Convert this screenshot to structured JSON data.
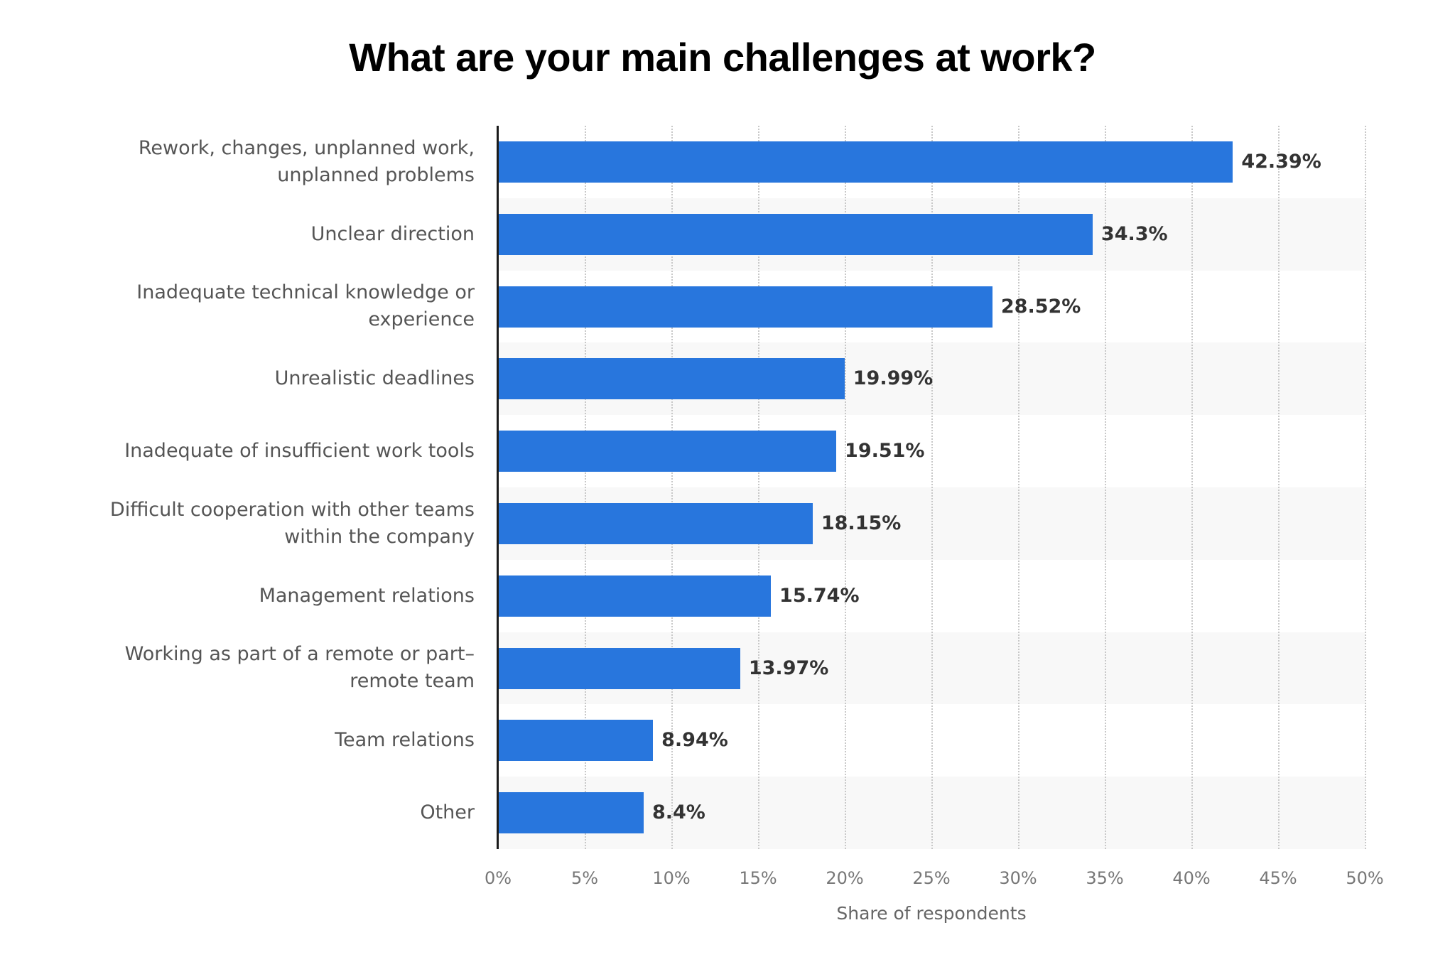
{
  "title": "What are your main challenges at work?",
  "colors": {
    "bar": "#2876dd",
    "band": "#f8f8f8",
    "axis": "#1a1a1a",
    "gridline": "#c8c8c8",
    "label_text": "#555555",
    "value_text": "#333333"
  },
  "chart_data": {
    "type": "bar",
    "orientation": "horizontal",
    "title": "What are your main challenges at work?",
    "xlabel": "Share of respondents",
    "ylabel": "",
    "xlim": [
      0,
      50
    ],
    "x_ticks": [
      "0%",
      "5%",
      "10%",
      "15%",
      "20%",
      "25%",
      "30%",
      "35%",
      "40%",
      "45%",
      "50%"
    ],
    "grid": true,
    "legend": null,
    "categories": [
      "Rework, changes, unplanned work, unplanned problems",
      "Unclear direction",
      "Inadequate technical knowledge or experience",
      "Unrealistic deadlines",
      "Inadequate of insufficient work tools",
      "Difficult cooperation with other teams within the company",
      "Management relations",
      "Working as part of a remote or part-remote team",
      "Team relations",
      "Other"
    ],
    "values": [
      42.39,
      34.3,
      28.52,
      19.99,
      19.51,
      18.15,
      15.74,
      13.97,
      8.94,
      8.4
    ],
    "value_labels": [
      "42.39%",
      "34.3%",
      "28.52%",
      "19.99%",
      "19.51%",
      "18.15%",
      "15.74%",
      "13.97%",
      "8.94%",
      "8.4%"
    ]
  },
  "rows": [
    {
      "label_lines": [
        "Rework, changes, unplanned work,",
        "unplanned problems"
      ],
      "value": 42.39,
      "value_label": "42.39%"
    },
    {
      "label_lines": [
        "Unclear direction"
      ],
      "value": 34.3,
      "value_label": "34.3%"
    },
    {
      "label_lines": [
        "Inadequate technical knowledge or",
        "experience"
      ],
      "value": 28.52,
      "value_label": "28.52%"
    },
    {
      "label_lines": [
        "Unrealistic deadlines"
      ],
      "value": 19.99,
      "value_label": "19.99%"
    },
    {
      "label_lines": [
        "Inadequate of insufficient work tools"
      ],
      "value": 19.51,
      "value_label": "19.51%"
    },
    {
      "label_lines": [
        "Difficult cooperation with other teams",
        "within the company"
      ],
      "value": 18.15,
      "value_label": "18.15%"
    },
    {
      "label_lines": [
        "Management relations"
      ],
      "value": 15.74,
      "value_label": "15.74%"
    },
    {
      "label_lines": [
        "Working as part of a remote or part–",
        "remote team"
      ],
      "value": 13.97,
      "value_label": "13.97%"
    },
    {
      "label_lines": [
        "Team relations"
      ],
      "value": 8.94,
      "value_label": "8.94%"
    },
    {
      "label_lines": [
        "Other"
      ],
      "value": 8.4,
      "value_label": "8.4%"
    }
  ],
  "x_axis": {
    "title": "Share of respondents",
    "ticks": [
      "0%",
      "5%",
      "10%",
      "15%",
      "20%",
      "25%",
      "30%",
      "35%",
      "40%",
      "45%",
      "50%"
    ]
  }
}
